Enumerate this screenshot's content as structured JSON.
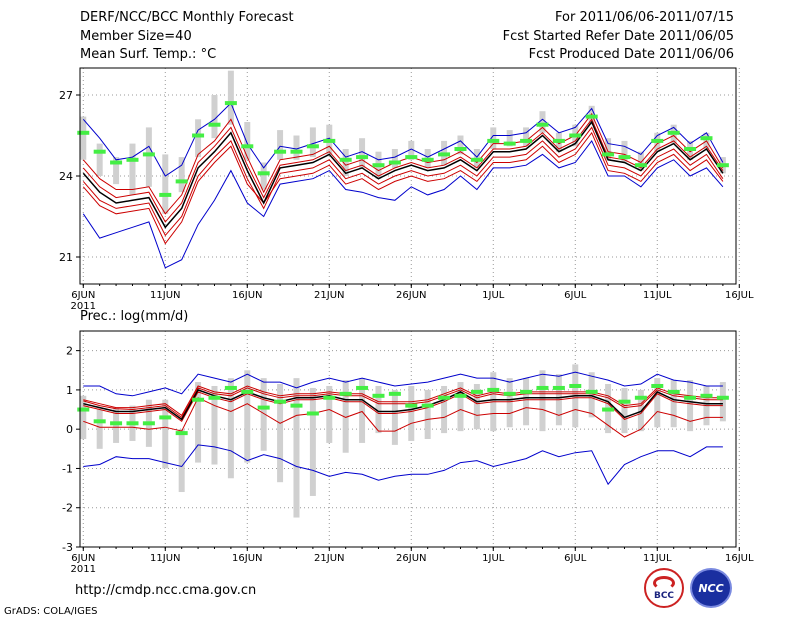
{
  "header": {
    "title": "DERF/NCC/BCC Monthly Forecast",
    "member_size": "Member Size=40",
    "variable": "Mean Surf. Temp.: °C",
    "period": "For 2011/06/06-2011/07/15",
    "started": "Fcst Started Refer Date 2011/06/05",
    "produced": "Fcst Produced Date 2011/06/06"
  },
  "footer": {
    "url": "http://cmdp.ncc.cma.gov.cn",
    "grads": "GrADS: COLA/IGES",
    "logo1_text": "BCC",
    "logo2_text": "NCC"
  },
  "colors": {
    "box": "#d0d0d0",
    "mean": "#44ee44",
    "envelope": "#0000cc",
    "spread": "#cc0000",
    "median": "#000000",
    "grid": "#999999"
  },
  "chart_data": [
    {
      "type": "line",
      "name": "temperature",
      "title": "",
      "ylabel": "Mean Surf. Temp.: °C",
      "ylim": [
        20,
        28
      ],
      "yticks": [
        21,
        24,
        27
      ],
      "yticklabels": [
        "21",
        "24",
        "27"
      ],
      "xlim": [
        0.8,
        40.8
      ],
      "xticks": [
        1,
        6,
        11,
        16,
        21,
        26,
        31,
        36,
        41
      ],
      "xticklabels": [
        "6JUN",
        "11JUN",
        "16JUN",
        "21JUN",
        "26JUN",
        "1JUL",
        "6JUL",
        "11JUL",
        "16JUL"
      ],
      "x_year_label": "2011",
      "days": [
        1,
        2,
        3,
        4,
        5,
        6,
        7,
        8,
        9,
        10,
        11,
        12,
        13,
        14,
        15,
        16,
        17,
        18,
        19,
        20,
        21,
        22,
        23,
        24,
        25,
        26,
        27,
        28,
        29,
        30,
        31,
        32,
        33,
        34,
        35,
        36,
        37,
        38,
        39,
        40
      ],
      "max": [
        26.1,
        25.4,
        24.6,
        24.7,
        25.1,
        24.0,
        24.4,
        25.7,
        26.1,
        26.7,
        25.2,
        24.3,
        25.1,
        25.0,
        25.2,
        25.4,
        24.7,
        24.9,
        24.6,
        24.7,
        25.0,
        24.7,
        25.0,
        25.3,
        24.7,
        25.5,
        25.5,
        25.6,
        26.1,
        25.6,
        25.8,
        26.5,
        25.2,
        25.1,
        24.8,
        25.5,
        25.8,
        25.2,
        25.6,
        24.5
      ],
      "q90": [
        24.6,
        23.9,
        23.5,
        23.5,
        23.6,
        22.6,
        23.3,
        24.8,
        25.3,
        26.1,
        24.7,
        23.4,
        24.6,
        24.7,
        24.8,
        25.1,
        24.4,
        24.6,
        24.2,
        24.5,
        24.7,
        24.5,
        24.6,
        24.9,
        24.5,
        25.2,
        25.2,
        25.3,
        25.8,
        25.2,
        25.5,
        26.3,
        24.9,
        24.8,
        24.5,
        25.2,
        25.5,
        24.9,
        25.3,
        24.3
      ],
      "q75": [
        24.3,
        23.6,
        23.2,
        23.3,
        23.4,
        22.3,
        23.0,
        24.5,
        25.1,
        25.8,
        24.4,
        23.2,
        24.4,
        24.5,
        24.6,
        24.9,
        24.2,
        24.4,
        24.0,
        24.3,
        24.5,
        24.3,
        24.4,
        24.7,
        24.3,
        25.0,
        25.0,
        25.1,
        25.6,
        25.0,
        25.3,
        26.1,
        24.7,
        24.6,
        24.3,
        25.0,
        25.3,
        24.7,
        25.1,
        24.2
      ],
      "median": [
        24.1,
        23.4,
        23.0,
        23.1,
        23.2,
        22.1,
        22.8,
        24.3,
        24.9,
        25.6,
        24.2,
        23.0,
        24.3,
        24.4,
        24.5,
        24.8,
        24.1,
        24.3,
        23.9,
        24.2,
        24.4,
        24.2,
        24.3,
        24.6,
        24.2,
        24.9,
        24.9,
        25.0,
        25.5,
        24.9,
        25.2,
        26.0,
        24.6,
        24.5,
        24.2,
        24.9,
        25.2,
        24.6,
        25.0,
        24.1
      ],
      "q25": [
        23.8,
        23.1,
        22.8,
        22.9,
        23.0,
        21.8,
        22.5,
        24.0,
        24.7,
        25.3,
        23.9,
        22.8,
        24.1,
        24.2,
        24.3,
        24.6,
        23.9,
        24.1,
        23.7,
        24.0,
        24.2,
        24.0,
        24.1,
        24.4,
        24.0,
        24.7,
        24.7,
        24.8,
        25.3,
        24.7,
        25.0,
        25.8,
        24.4,
        24.3,
        24.0,
        24.7,
        25.0,
        24.4,
        24.8,
        23.9
      ],
      "q10": [
        23.6,
        22.9,
        22.6,
        22.7,
        22.8,
        21.5,
        22.3,
        23.8,
        24.5,
        25.1,
        23.7,
        23.0,
        23.9,
        24.0,
        24.1,
        24.4,
        23.7,
        23.9,
        23.5,
        23.8,
        24.0,
        23.8,
        23.9,
        24.2,
        23.8,
        24.5,
        24.5,
        24.6,
        25.1,
        24.5,
        24.8,
        25.6,
        24.2,
        24.1,
        23.8,
        24.5,
        24.8,
        24.2,
        24.6,
        23.8
      ],
      "min": [
        22.6,
        21.7,
        21.9,
        22.1,
        22.3,
        20.6,
        20.9,
        22.2,
        23.1,
        24.2,
        23.0,
        22.5,
        23.7,
        23.8,
        23.9,
        24.2,
        23.5,
        23.4,
        23.2,
        23.1,
        23.6,
        23.3,
        23.5,
        24.0,
        23.5,
        24.3,
        24.3,
        24.4,
        24.8,
        24.3,
        24.5,
        25.3,
        24.0,
        24.0,
        23.6,
        24.3,
        24.6,
        24.0,
        24.3,
        23.6
      ],
      "box_top": [
        26.2,
        25.2,
        24.7,
        25.2,
        25.8,
        24.8,
        24.7,
        26.1,
        27.0,
        27.9,
        26.0,
        24.5,
        25.7,
        25.5,
        25.8,
        25.9,
        25.0,
        25.4,
        24.9,
        25.0,
        25.3,
        25.0,
        25.3,
        25.5,
        25.0,
        25.8,
        25.7,
        25.8,
        26.4,
        25.6,
        25.9,
        26.6,
        25.4,
        25.3,
        24.9,
        25.6,
        25.9,
        25.3,
        25.6,
        24.7
      ],
      "box_bottom": [
        24.6,
        24.0,
        23.7,
        23.3,
        23.6,
        22.6,
        23.4,
        24.7,
        25.4,
        25.9,
        24.6,
        23.5,
        24.6,
        24.6,
        24.7,
        24.8,
        24.0,
        24.3,
        23.9,
        24.3,
        24.6,
        24.3,
        24.4,
        24.8,
        24.3,
        25.0,
        25.1,
        25.1,
        25.6,
        24.9,
        25.1,
        25.9,
        24.6,
        24.5,
        24.2,
        24.9,
        25.2,
        24.6,
        25.0,
        24.1
      ],
      "mean": [
        25.6,
        24.9,
        24.5,
        24.6,
        24.8,
        23.3,
        23.8,
        25.5,
        25.9,
        26.7,
        25.1,
        24.1,
        24.9,
        24.9,
        25.1,
        25.3,
        24.6,
        24.7,
        24.4,
        24.5,
        24.7,
        24.6,
        24.8,
        25.0,
        24.6,
        25.3,
        25.2,
        25.3,
        25.9,
        25.3,
        25.5,
        26.2,
        24.8,
        24.7,
        24.4,
        25.3,
        25.6,
        25.0,
        25.4,
        24.4
      ]
    },
    {
      "type": "line",
      "name": "precipitation",
      "title": "",
      "ylabel": "Prec.: log(mm/d)",
      "ylim": [
        -3,
        2.5
      ],
      "yticks": [
        -3,
        -2,
        -1,
        0,
        1,
        2
      ],
      "yticklabels": [
        "-3",
        "-2",
        "-1",
        "0",
        "1",
        "2"
      ],
      "xlim": [
        0.8,
        40.8
      ],
      "xticks": [
        1,
        6,
        11,
        16,
        21,
        26,
        31,
        36,
        41
      ],
      "xticklabels": [
        "6JUN",
        "11JUN",
        "16JUN",
        "21JUN",
        "26JUN",
        "1JUL",
        "6JUL",
        "11JUL",
        "16JUL"
      ],
      "x_year_label": "2011",
      "days": [
        1,
        2,
        3,
        4,
        5,
        6,
        7,
        8,
        9,
        10,
        11,
        12,
        13,
        14,
        15,
        16,
        17,
        18,
        19,
        20,
        21,
        22,
        23,
        24,
        25,
        26,
        27,
        28,
        29,
        30,
        31,
        32,
        33,
        34,
        35,
        36,
        37,
        38,
        39,
        40
      ],
      "max": [
        1.1,
        1.1,
        0.9,
        0.85,
        0.95,
        1.05,
        0.9,
        1.4,
        1.3,
        1.2,
        1.4,
        1.2,
        1.2,
        1.05,
        1.2,
        1.3,
        1.2,
        1.3,
        1.2,
        1.1,
        1.15,
        1.2,
        1.3,
        1.4,
        1.3,
        1.3,
        1.2,
        1.3,
        1.4,
        1.35,
        1.45,
        1.35,
        1.25,
        1.1,
        1.15,
        1.4,
        1.25,
        1.2,
        1.1,
        1.1
      ],
      "q90": [
        0.75,
        0.65,
        0.55,
        0.55,
        0.6,
        0.65,
        0.35,
        1.1,
        0.95,
        0.9,
        1.1,
        0.95,
        0.85,
        0.9,
        0.9,
        0.95,
        0.9,
        0.9,
        0.7,
        0.7,
        0.7,
        0.75,
        0.9,
        1.05,
        0.85,
        0.95,
        0.9,
        0.95,
        0.95,
        0.95,
        0.95,
        0.95,
        0.85,
        0.6,
        0.65,
        1.05,
        0.9,
        0.85,
        0.8,
        0.8
      ],
      "q75": [
        0.72,
        0.6,
        0.52,
        0.5,
        0.55,
        0.6,
        0.3,
        1.05,
        0.9,
        0.85,
        1.05,
        0.9,
        0.8,
        0.85,
        0.85,
        0.9,
        0.85,
        0.85,
        0.65,
        0.65,
        0.65,
        0.7,
        0.85,
        1.0,
        0.8,
        0.9,
        0.85,
        0.9,
        0.9,
        0.9,
        0.9,
        0.9,
        0.8,
        0.55,
        0.6,
        1.0,
        0.85,
        0.8,
        0.75,
        0.75
      ],
      "median": [
        0.65,
        0.55,
        0.45,
        0.45,
        0.5,
        0.55,
        0.25,
        1.0,
        0.85,
        0.75,
        0.95,
        0.8,
        0.7,
        0.8,
        0.8,
        0.85,
        0.75,
        0.75,
        0.45,
        0.45,
        0.5,
        0.6,
        0.75,
        0.95,
        0.7,
        0.75,
        0.75,
        0.8,
        0.8,
        0.8,
        0.85,
        0.85,
        0.7,
        0.3,
        0.45,
        0.95,
        0.75,
        0.7,
        0.65,
        0.65
      ],
      "q25": [
        0.6,
        0.5,
        0.4,
        0.4,
        0.45,
        0.5,
        0.2,
        0.95,
        0.8,
        0.7,
        0.9,
        0.75,
        0.65,
        0.75,
        0.75,
        0.8,
        0.7,
        0.7,
        0.4,
        0.4,
        0.45,
        0.55,
        0.7,
        0.9,
        0.65,
        0.7,
        0.7,
        0.75,
        0.75,
        0.75,
        0.8,
        0.8,
        0.65,
        0.25,
        0.4,
        0.9,
        0.7,
        0.65,
        0.6,
        0.6
      ],
      "q10": [
        0.2,
        0.05,
        0.05,
        0.05,
        0.0,
        0.05,
        -0.05,
        0.8,
        0.6,
        0.45,
        0.65,
        0.4,
        0.15,
        0.35,
        0.4,
        0.5,
        0.3,
        0.45,
        -0.05,
        -0.05,
        0.15,
        0.25,
        0.3,
        0.5,
        0.35,
        0.4,
        0.4,
        0.55,
        0.5,
        0.35,
        0.5,
        0.4,
        0.1,
        -0.2,
        0.0,
        0.45,
        0.35,
        0.2,
        0.3,
        0.3
      ],
      "min": [
        -0.95,
        -0.9,
        -0.7,
        -0.75,
        -0.75,
        -0.85,
        -0.95,
        -0.4,
        -0.45,
        -0.55,
        -0.8,
        -0.65,
        -0.75,
        -0.95,
        -1.05,
        -1.2,
        -1.1,
        -1.15,
        -1.3,
        -1.2,
        -1.15,
        -1.15,
        -1.05,
        -0.85,
        -0.8,
        -0.95,
        -0.85,
        -0.75,
        -0.55,
        -0.7,
        -0.6,
        -0.55,
        -1.4,
        -0.9,
        -0.7,
        -0.55,
        -0.55,
        -0.7,
        -0.45,
        -0.45
      ],
      "box_top": [
        0.85,
        0.5,
        0.55,
        0.6,
        0.75,
        0.75,
        0.0,
        1.2,
        1.1,
        1.3,
        1.5,
        1.3,
        1.15,
        1.3,
        1.05,
        1.1,
        1.25,
        1.3,
        1.1,
        1.0,
        1.1,
        1.0,
        1.1,
        1.2,
        1.15,
        1.45,
        1.3,
        1.3,
        1.5,
        1.4,
        1.65,
        1.45,
        1.15,
        1.05,
        1.0,
        1.3,
        1.25,
        1.25,
        1.1,
        1.2
      ],
      "box_bottom": [
        -0.25,
        -0.5,
        -0.35,
        -0.3,
        -0.45,
        -1.0,
        -1.6,
        -0.85,
        -0.9,
        -1.25,
        -0.85,
        -0.55,
        -1.35,
        -2.25,
        -1.7,
        -0.35,
        -0.6,
        -0.35,
        -0.1,
        -0.4,
        -0.3,
        -0.25,
        -0.1,
        -0.05,
        0.0,
        -0.05,
        0.05,
        0.1,
        -0.05,
        0.1,
        0.05,
        0.3,
        -0.1,
        -0.1,
        -0.05,
        0.05,
        0.05,
        -0.05,
        0.1,
        0.2
      ],
      "mean": [
        0.5,
        0.2,
        0.15,
        0.15,
        0.15,
        0.3,
        -0.1,
        0.75,
        0.8,
        1.05,
        0.95,
        0.55,
        0.7,
        0.6,
        0.4,
        0.8,
        0.9,
        1.05,
        0.85,
        0.9,
        0.6,
        0.6,
        0.8,
        0.85,
        0.95,
        1.0,
        0.9,
        0.95,
        1.05,
        1.05,
        1.1,
        0.95,
        0.5,
        0.7,
        0.8,
        1.1,
        0.95,
        0.8,
        0.85,
        0.8
      ]
    }
  ]
}
